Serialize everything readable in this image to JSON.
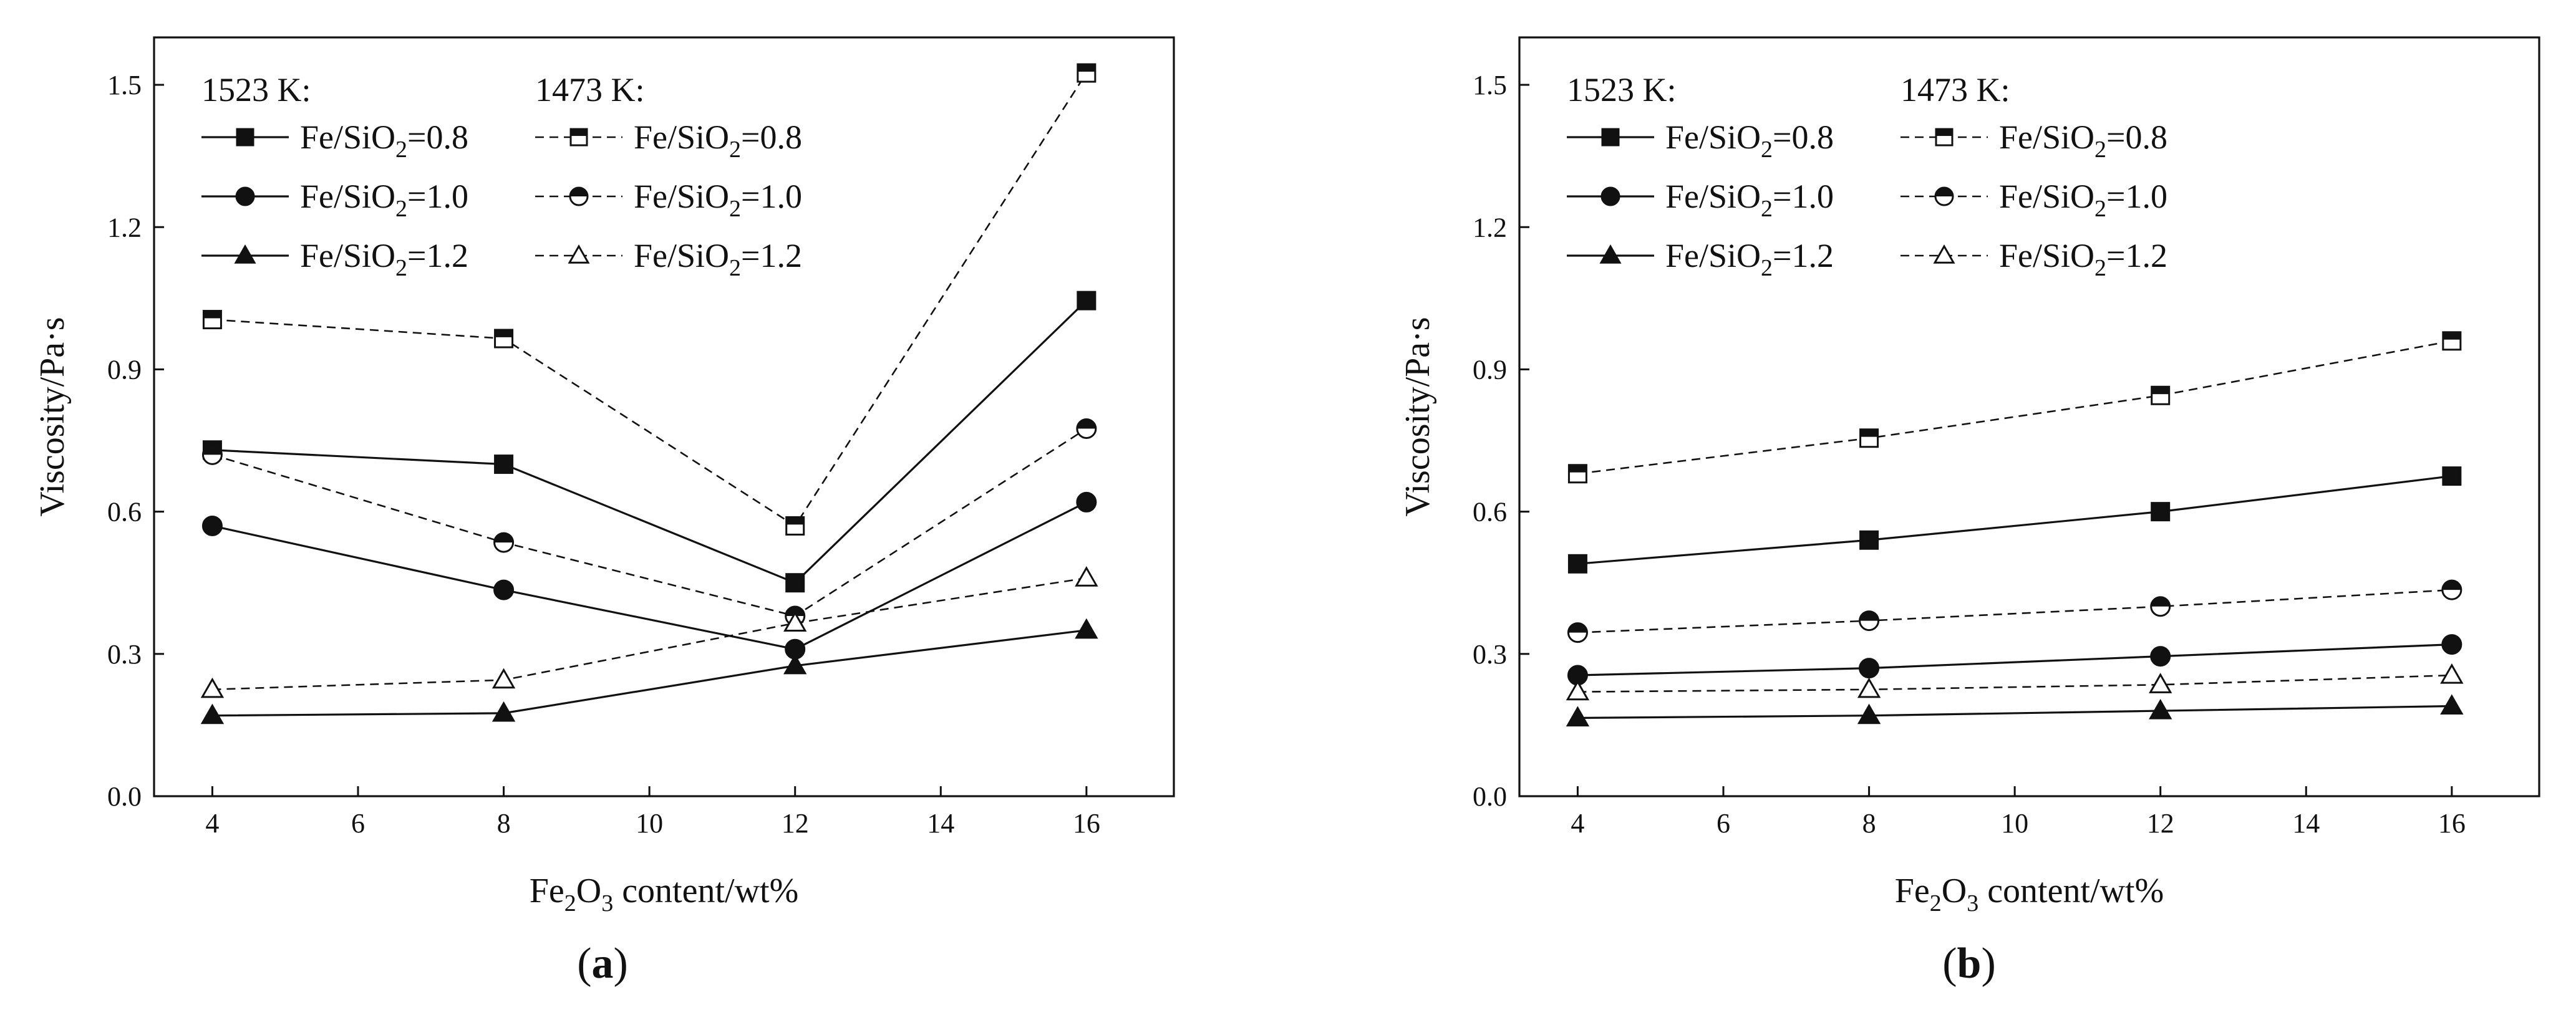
{
  "colors": {
    "ink": "#111111",
    "background": "#ffffff"
  },
  "chart_data": [
    {
      "panel_label": "a",
      "type": "line",
      "xlabel_base": "Fe",
      "xlabel_sub1": "2",
      "xlabel_mid": "O",
      "xlabel_sub2": "3",
      "xlabel_rest": " content/wt%",
      "ylabel": "Viscosity/Pa·s",
      "xlim": [
        3.2,
        17.2
      ],
      "ylim": [
        0,
        1.6
      ],
      "xticks": [
        "4",
        "6",
        "8",
        "10",
        "12",
        "14",
        "16"
      ],
      "yticks": [
        "0.0",
        "0.3",
        "0.6",
        "0.9",
        "1.2",
        "1.5"
      ],
      "legend_headers": [
        "1523 K:",
        "1473 K:"
      ],
      "x": [
        4,
        8,
        12,
        16
      ],
      "series": [
        {
          "group": "1523 K",
          "ratio": "0.8",
          "marker": "square",
          "filled": true,
          "dashed": false,
          "values": [
            0.73,
            0.7,
            0.45,
            1.045
          ]
        },
        {
          "group": "1523 K",
          "ratio": "1.0",
          "marker": "circle",
          "filled": true,
          "dashed": false,
          "values": [
            0.57,
            0.435,
            0.31,
            0.62
          ]
        },
        {
          "group": "1523 K",
          "ratio": "1.2",
          "marker": "triangle",
          "filled": true,
          "dashed": false,
          "values": [
            0.17,
            0.175,
            0.275,
            0.35
          ]
        },
        {
          "group": "1473 K",
          "ratio": "0.8",
          "marker": "square",
          "filled": false,
          "dashed": true,
          "values": [
            1.005,
            0.965,
            0.57,
            1.525
          ]
        },
        {
          "group": "1473 K",
          "ratio": "1.0",
          "marker": "circle",
          "filled": false,
          "dashed": true,
          "values": [
            0.72,
            0.535,
            0.38,
            0.775
          ]
        },
        {
          "group": "1473 K",
          "ratio": "1.2",
          "marker": "triangle",
          "filled": false,
          "dashed": true,
          "values": [
            0.225,
            0.245,
            0.365,
            0.46
          ]
        }
      ]
    },
    {
      "panel_label": "b",
      "type": "line",
      "xlabel_base": "Fe",
      "xlabel_sub1": "2",
      "xlabel_mid": "O",
      "xlabel_sub2": "3",
      "xlabel_rest": " content/wt%",
      "ylabel": "Viscosity/Pa·s",
      "xlim": [
        3.2,
        17.2
      ],
      "ylim": [
        0,
        1.6
      ],
      "xticks": [
        "4",
        "6",
        "8",
        "10",
        "12",
        "14",
        "16"
      ],
      "yticks": [
        "0.0",
        "0.3",
        "0.6",
        "0.9",
        "1.2",
        "1.5"
      ],
      "legend_headers": [
        "1523 K:",
        "1473 K:"
      ],
      "x": [
        4,
        8,
        12,
        16
      ],
      "series": [
        {
          "group": "1523 K",
          "ratio": "0.8",
          "marker": "square",
          "filled": true,
          "dashed": false,
          "values": [
            0.49,
            0.54,
            0.6,
            0.675
          ]
        },
        {
          "group": "1523 K",
          "ratio": "1.0",
          "marker": "circle",
          "filled": true,
          "dashed": false,
          "values": [
            0.255,
            0.27,
            0.295,
            0.32
          ]
        },
        {
          "group": "1523 K",
          "ratio": "1.2",
          "marker": "triangle",
          "filled": true,
          "dashed": false,
          "values": [
            0.165,
            0.17,
            0.18,
            0.19
          ]
        },
        {
          "group": "1473 K",
          "ratio": "0.8",
          "marker": "square",
          "filled": false,
          "dashed": true,
          "values": [
            0.68,
            0.755,
            0.845,
            0.96
          ]
        },
        {
          "group": "1473 K",
          "ratio": "1.0",
          "marker": "circle",
          "filled": false,
          "dashed": true,
          "values": [
            0.345,
            0.37,
            0.4,
            0.435
          ]
        },
        {
          "group": "1473 K",
          "ratio": "1.2",
          "marker": "triangle",
          "filled": false,
          "dashed": true,
          "values": [
            0.22,
            0.225,
            0.235,
            0.255
          ]
        }
      ]
    }
  ],
  "legend_label_prefix": "Fe/SiO",
  "legend_label_sub": "2",
  "legend_label_eq": "="
}
